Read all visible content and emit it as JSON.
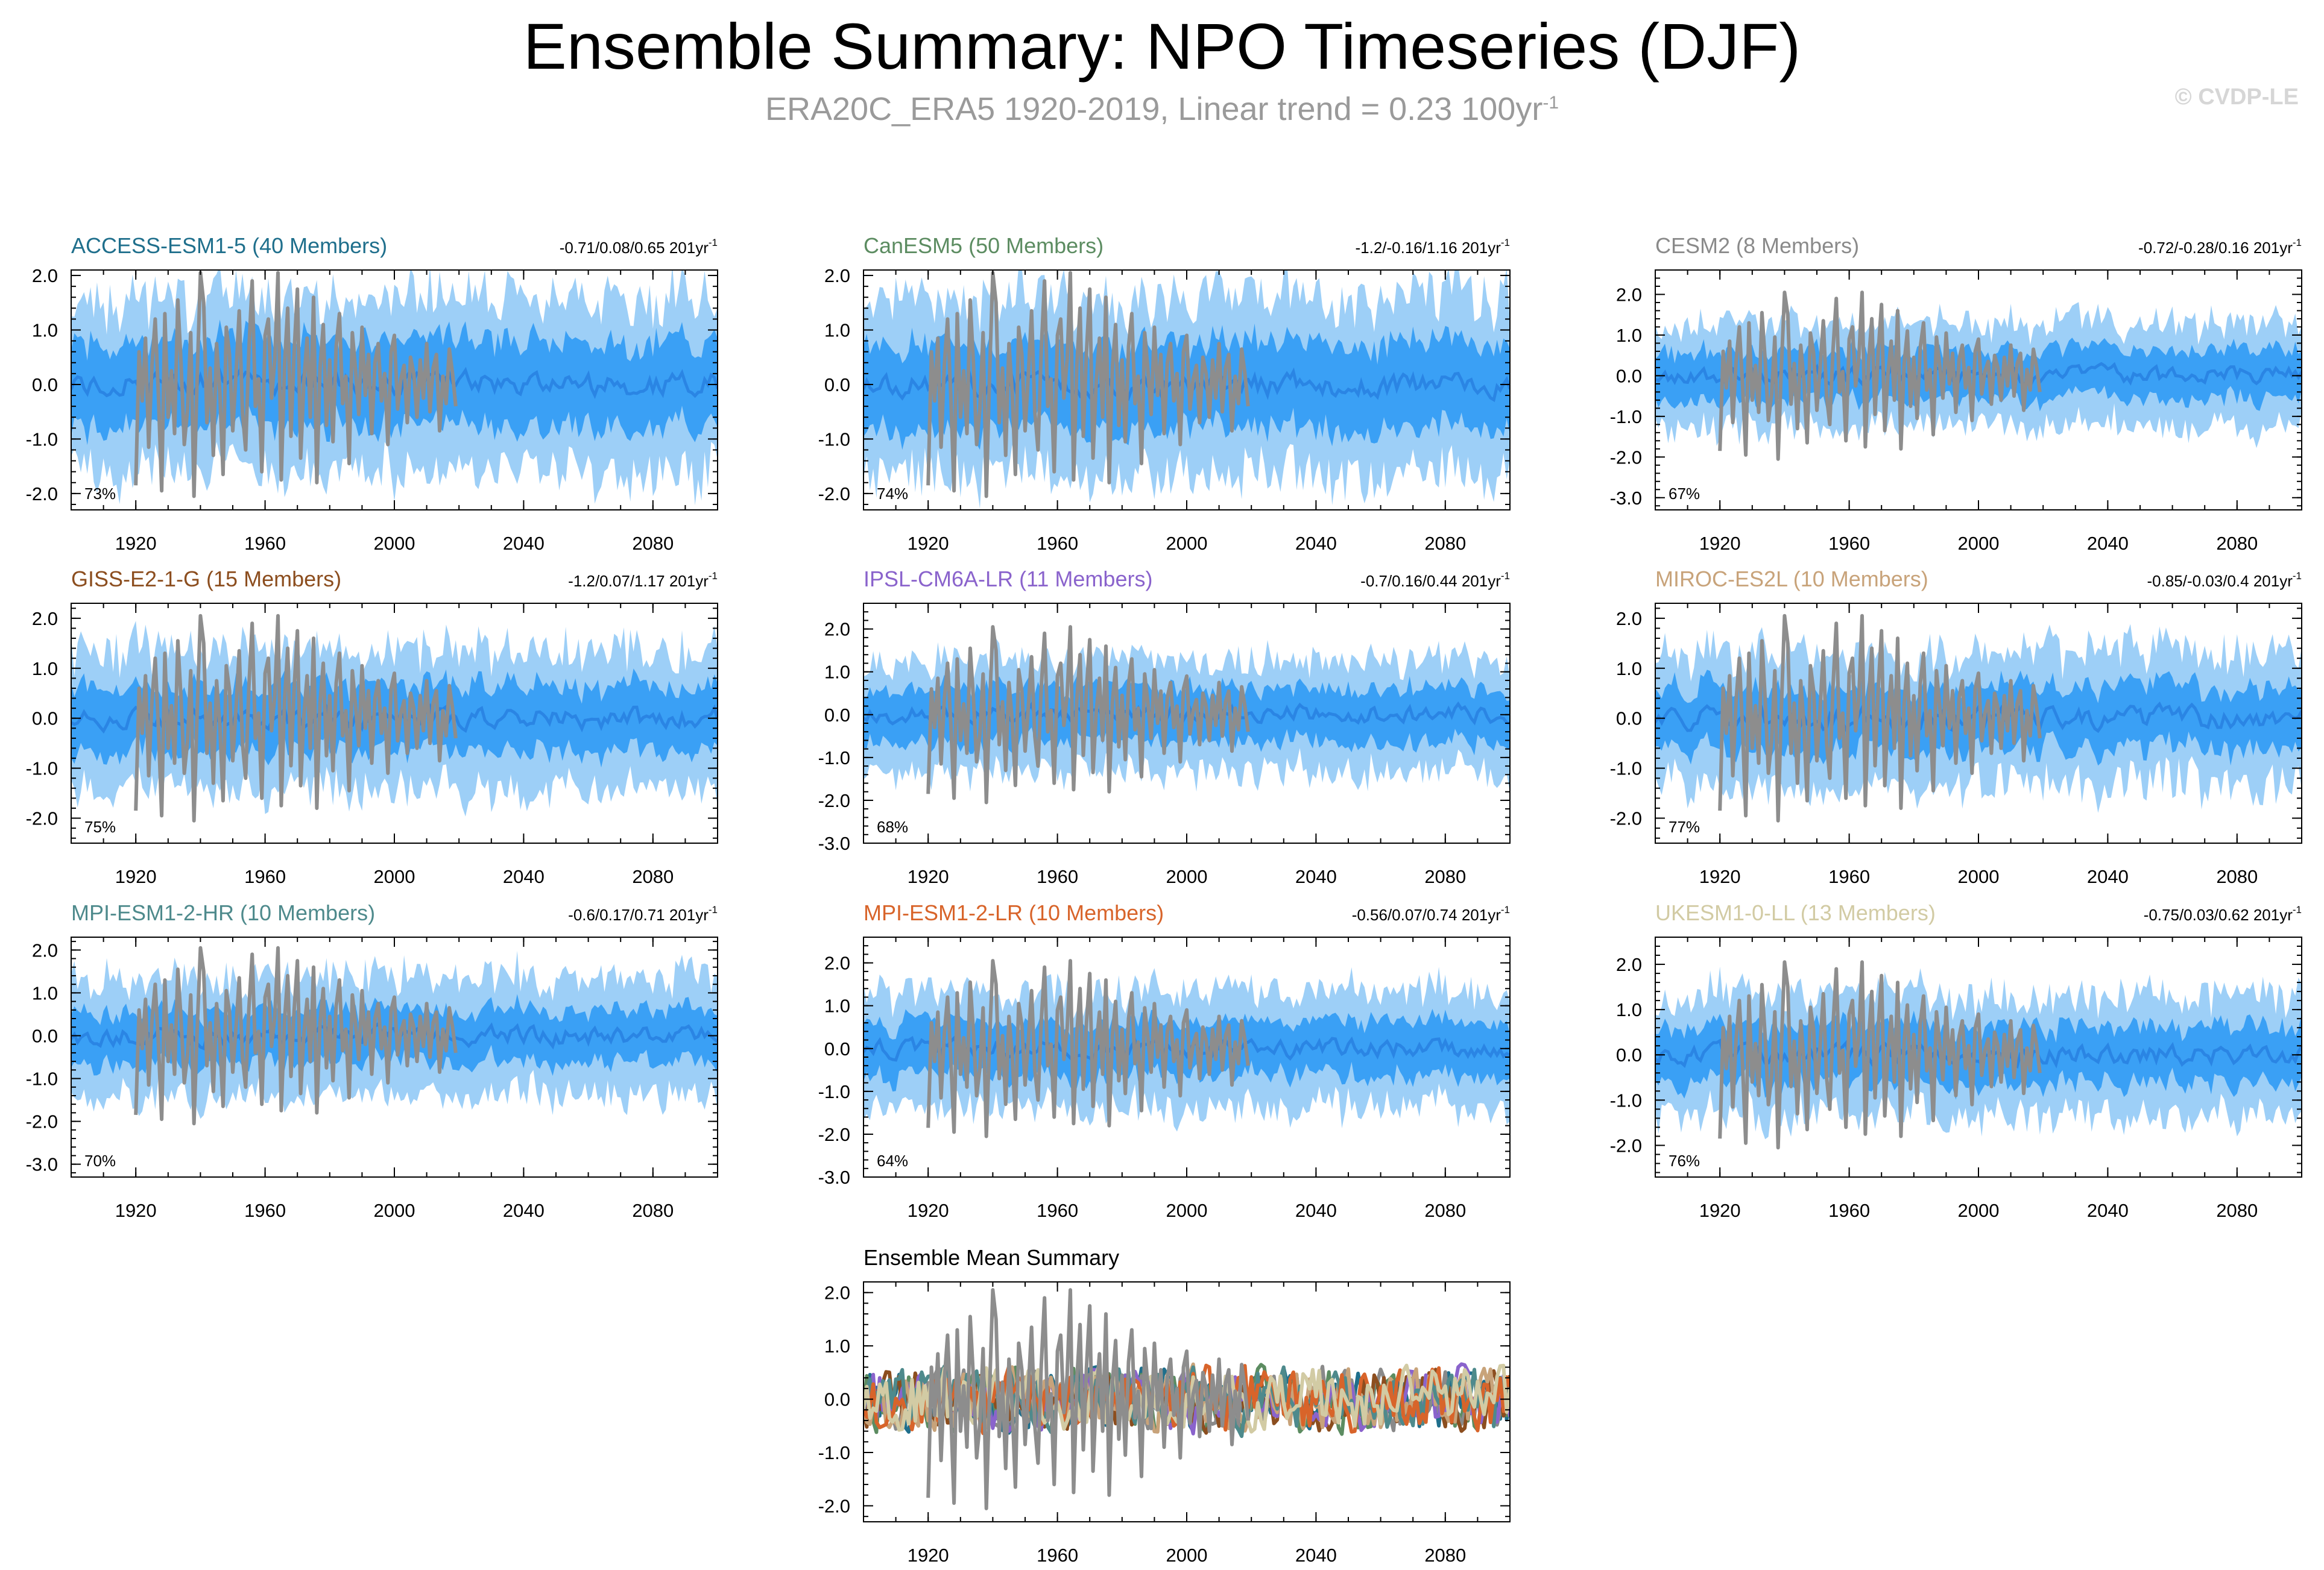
{
  "title": "Ensemble Summary: NPO Timeseries (DJF)",
  "subtitle": "ERA20C_ERA5 1920-2019, Linear trend = 0.23 100yr",
  "subtitle_unit_exponent": "-1",
  "copyright": "© CVDP-LE",
  "colors": {
    "outer_band": "#9dcff7",
    "inner_band": "#3aa0f5",
    "mean_line": "#2a85e4",
    "obs_line": "#8d8d8d"
  },
  "chart_data": [
    {
      "type": "line",
      "title": "ACCESS-ESM1-5 (40 Members)",
      "title_color": "#1f6f8c",
      "trend_range": "-0.71/0.08/0.65 201yr",
      "trend_exponent": "-1",
      "percent": "73%",
      "xlim": [
        1900,
        2100
      ],
      "ylim": [
        -2.3,
        2.1
      ],
      "yticks": [
        2.0,
        1.0,
        0.0,
        -1.0,
        -2.0
      ],
      "ytick_labels": [
        "2.0",
        "1.0",
        "0.0",
        "-1.0",
        "-2.0"
      ],
      "xticks": [
        1920,
        1960,
        2000,
        2040,
        2080
      ],
      "xtick_labels": [
        "1920",
        "1960",
        "2000",
        "2040",
        "2080"
      ],
      "inner_halfwidth": 0.78,
      "outer_halfwidth": 1.55,
      "seed": 11
    },
    {
      "type": "line",
      "title": "CanESM5 (50 Members)",
      "title_color": "#5c8c61",
      "trend_range": "-1.2/-0.16/1.16 201yr",
      "trend_exponent": "-1",
      "percent": "74%",
      "xlim": [
        1900,
        2100
      ],
      "ylim": [
        -2.3,
        2.1
      ],
      "yticks": [
        2.0,
        1.0,
        0.0,
        -1.0,
        -2.0
      ],
      "ytick_labels": [
        "2.0",
        "1.0",
        "0.0",
        "-1.0",
        "-2.0"
      ],
      "xticks": [
        1920,
        1960,
        2000,
        2040,
        2080
      ],
      "xtick_labels": [
        "1920",
        "1960",
        "2000",
        "2040",
        "2080"
      ],
      "inner_halfwidth": 0.78,
      "outer_halfwidth": 1.6,
      "seed": 23
    },
    {
      "type": "line",
      "title": "CESM2 (8 Members)",
      "title_color": "#8a8a8a",
      "trend_range": "-0.72/-0.28/0.16 201yr",
      "trend_exponent": "-1",
      "percent": "67%",
      "xlim": [
        1900,
        2100
      ],
      "ylim": [
        -3.3,
        2.6
      ],
      "yticks": [
        2.0,
        1.0,
        0.0,
        -1.0,
        -2.0,
        -3.0
      ],
      "ytick_labels": [
        "2.0",
        "1.0",
        "0.0",
        "-1.0",
        "-2.0",
        "-3.0"
      ],
      "xticks": [
        1920,
        1960,
        2000,
        2040,
        2080
      ],
      "xtick_labels": [
        "1920",
        "1960",
        "2000",
        "2040",
        "2080"
      ],
      "inner_halfwidth": 0.6,
      "outer_halfwidth": 1.25,
      "seed": 37
    },
    {
      "type": "line",
      "title": "GISS-E2-1-G (15 Members)",
      "title_color": "#8c4e1f",
      "trend_range": "-1.2/0.07/1.17 201yr",
      "trend_exponent": "-1",
      "percent": "75%",
      "xlim": [
        1900,
        2100
      ],
      "ylim": [
        -2.5,
        2.3
      ],
      "yticks": [
        2.0,
        1.0,
        0.0,
        -1.0,
        -2.0
      ],
      "ytick_labels": [
        "2.0",
        "1.0",
        "0.0",
        "-1.0",
        "-2.0"
      ],
      "xticks": [
        1920,
        1960,
        2000,
        2040,
        2080
      ],
      "xtick_labels": [
        "1920",
        "1960",
        "2000",
        "2040",
        "2080"
      ],
      "inner_halfwidth": 0.65,
      "outer_halfwidth": 1.35,
      "seed": 41
    },
    {
      "type": "line",
      "title": "IPSL-CM6A-LR (11 Members)",
      "title_color": "#8a63cc",
      "trend_range": "-0.7/0.16/0.44 201yr",
      "trend_exponent": "-1",
      "percent": "68%",
      "xlim": [
        1900,
        2100
      ],
      "ylim": [
        -3.0,
        2.6
      ],
      "yticks": [
        2.0,
        1.0,
        0.0,
        -1.0,
        -2.0,
        -3.0
      ],
      "ytick_labels": [
        "2.0",
        "1.0",
        "0.0",
        "-1.0",
        "-2.0",
        "-3.0"
      ],
      "xticks": [
        1920,
        1960,
        2000,
        2040,
        2080
      ],
      "xtick_labels": [
        "1920",
        "1960",
        "2000",
        "2040",
        "2080"
      ],
      "inner_halfwidth": 0.62,
      "outer_halfwidth": 1.3,
      "seed": 53
    },
    {
      "type": "line",
      "title": "MIROC-ES2L (10 Members)",
      "title_color": "#c8a37a",
      "trend_range": "-0.85/-0.03/0.4 201yr",
      "trend_exponent": "-1",
      "percent": "77%",
      "xlim": [
        1900,
        2100
      ],
      "ylim": [
        -2.5,
        2.3
      ],
      "yticks": [
        2.0,
        1.0,
        0.0,
        -1.0,
        -2.0
      ],
      "ytick_labels": [
        "2.0",
        "1.0",
        "0.0",
        "-1.0",
        "-2.0"
      ],
      "xticks": [
        1920,
        1960,
        2000,
        2040,
        2080
      ],
      "xtick_labels": [
        "1920",
        "1960",
        "2000",
        "2040",
        "2080"
      ],
      "inner_halfwidth": 0.62,
      "outer_halfwidth": 1.3,
      "seed": 67
    },
    {
      "type": "line",
      "title": "MPI-ESM1-2-HR (10 Members)",
      "title_color": "#4e8a8c",
      "trend_range": "-0.6/0.17/0.71 201yr",
      "trend_exponent": "-1",
      "percent": "70%",
      "xlim": [
        1900,
        2100
      ],
      "ylim": [
        -3.3,
        2.3
      ],
      "yticks": [
        2.0,
        1.0,
        0.0,
        -1.0,
        -2.0,
        -3.0
      ],
      "ytick_labels": [
        "2.0",
        "1.0",
        "0.0",
        "-1.0",
        "-2.0",
        "-3.0"
      ],
      "xticks": [
        1920,
        1960,
        2000,
        2040,
        2080
      ],
      "xtick_labels": [
        "1920",
        "1960",
        "2000",
        "2040",
        "2080"
      ],
      "inner_halfwidth": 0.6,
      "outer_halfwidth": 1.35,
      "seed": 71
    },
    {
      "type": "line",
      "title": "MPI-ESM1-2-LR (10 Members)",
      "title_color": "#d8642a",
      "trend_range": "-0.56/0.07/0.74 201yr",
      "trend_exponent": "-1",
      "percent": "64%",
      "xlim": [
        1900,
        2100
      ],
      "ylim": [
        -3.0,
        2.6
      ],
      "yticks": [
        2.0,
        1.0,
        0.0,
        -1.0,
        -2.0,
        -3.0
      ],
      "ytick_labels": [
        "2.0",
        "1.0",
        "0.0",
        "-1.0",
        "-2.0",
        "-3.0"
      ],
      "xticks": [
        1920,
        1960,
        2000,
        2040,
        2080
      ],
      "xtick_labels": [
        "1920",
        "1960",
        "2000",
        "2040",
        "2080"
      ],
      "inner_halfwidth": 0.62,
      "outer_halfwidth": 1.35,
      "seed": 83
    },
    {
      "type": "line",
      "title": "UKESM1-0-LL (13 Members)",
      "title_color": "#d2cba4",
      "trend_range": "-0.75/0.03/0.62 201yr",
      "trend_exponent": "-1",
      "percent": "76%",
      "xlim": [
        1900,
        2100
      ],
      "ylim": [
        -2.7,
        2.6
      ],
      "yticks": [
        2.0,
        1.0,
        0.0,
        -1.0,
        -2.0
      ],
      "ytick_labels": [
        "2.0",
        "1.0",
        "0.0",
        "-1.0",
        "-2.0"
      ],
      "xticks": [
        1920,
        1960,
        2000,
        2040,
        2080
      ],
      "xtick_labels": [
        "1920",
        "1960",
        "2000",
        "2040",
        "2080"
      ],
      "inner_halfwidth": 0.62,
      "outer_halfwidth": 1.3,
      "seed": 97
    },
    {
      "type": "line",
      "title": "Ensemble Mean Summary",
      "title_color": "#000000",
      "trend_range": "",
      "trend_exponent": "",
      "percent": "",
      "summary": true,
      "xlim": [
        1900,
        2100
      ],
      "ylim": [
        -2.3,
        2.2
      ],
      "yticks": [
        2.0,
        1.0,
        0.0,
        -1.0,
        -2.0
      ],
      "ytick_labels": [
        "2.0",
        "1.0",
        "0.0",
        "-1.0",
        "-2.0"
      ],
      "xticks": [
        1920,
        1960,
        2000,
        2040,
        2080
      ],
      "xtick_labels": [
        "1920",
        "1960",
        "2000",
        "2040",
        "2080"
      ],
      "series_colors": [
        "#1f6f8c",
        "#5c8c61",
        "#8a8a8a",
        "#8c4e1f",
        "#8a63cc",
        "#c8a37a",
        "#4e8a8c",
        "#d8642a",
        "#d2cba4"
      ],
      "seed": 101
    }
  ],
  "observed": {
    "name": "ERA20C_ERA5",
    "start_year": 1920,
    "values": [
      -1.85,
      0.6,
      -0.3,
      0.85,
      -1.15,
      0.35,
      1.2,
      -0.2,
      -1.95,
      1.3,
      -0.6,
      0.25,
      -0.9,
      1.55,
      0.4,
      -1.1,
      -0.45,
      0.95,
      -2.05,
      0.15,
      2.05,
      1.5,
      -0.7,
      0.3,
      -1.3,
      0.75,
      -0.15,
      -1.65,
      1.05,
      0.55,
      -0.85,
      0.2,
      1.35,
      -0.5,
      -1.2,
      0.65,
      1.9,
      -0.4,
      0.1,
      -1.6,
      0.9,
      1.2,
      -0.25,
      0.45,
      2.05,
      -1.75,
      0.35,
      1.4,
      -0.95,
      0.6,
      1.75,
      -1.35,
      0.05,
      0.85,
      -0.6,
      1.6,
      -1.8,
      0.3,
      1.1,
      -0.75,
      0.45,
      -1.05,
      0.7,
      1.3,
      -0.35,
      0.15,
      -1.45,
      0.95,
      0.25,
      -0.55,
      1.05,
      -0.2,
      0.55,
      -0.9,
      0.4,
      0.75,
      -0.3,
      0.2,
      -1.1,
      0.6,
      0.9,
      -0.45,
      0.1,
      0.35,
      -0.7,
      0.5,
      0.2,
      -0.6,
      0.45,
      -0.25,
      0.75,
      -0.5,
      0.3,
      0.55,
      -0.85,
      0.15,
      -0.35,
      0.65,
      0.2,
      -0.4
    ]
  }
}
